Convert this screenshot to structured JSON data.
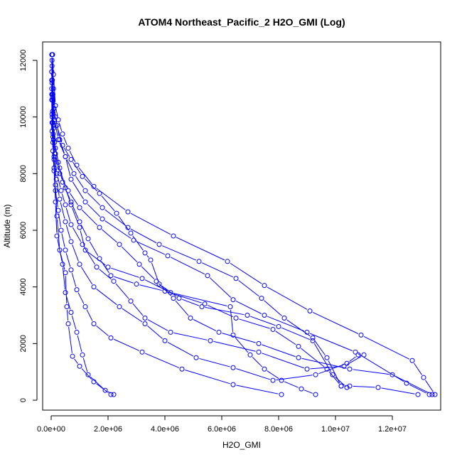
{
  "chart_data": {
    "type": "scatter",
    "title": "ATOM4 Northeast_Pacific_2 H2O_GMI (Log)",
    "xlabel": "H2O_GMI",
    "ylabel": "Altitude (m)",
    "xlim": [
      -300000,
      13700000
    ],
    "ylim": [
      -350,
      12650
    ],
    "xticks": [
      0,
      2000000,
      4000000,
      6000000,
      8000000,
      10000000,
      12000000
    ],
    "xtick_labels": [
      "0.0e+00",
      "2.0e+06",
      "4.0e+06",
      "6.0e+06",
      "8.0e+06",
      "1.0e+07",
      "1.2e+07"
    ],
    "yticks": [
      0,
      2000,
      4000,
      6000,
      8000,
      10000,
      12000
    ],
    "ytick_labels": [
      "0",
      "2000",
      "4000",
      "6000",
      "8000",
      "10000",
      "12000"
    ],
    "grid": false,
    "color": "#0000ff",
    "marker": "open-circle",
    "series": [
      {
        "points": [
          [
            2200000,
            200
          ],
          [
            1900000,
            350
          ],
          [
            1300000,
            900
          ],
          [
            1100000,
            1600
          ],
          [
            900000,
            2400
          ],
          [
            700000,
            3100
          ],
          [
            500000,
            3800
          ],
          [
            400000,
            4800
          ],
          [
            200000,
            5800
          ],
          [
            150000,
            7000
          ],
          [
            100000,
            8200
          ],
          [
            80000,
            9200
          ],
          [
            50000,
            10200
          ],
          [
            30000,
            11200
          ],
          [
            20000,
            12200
          ]
        ]
      },
      {
        "points": [
          [
            2100000,
            200
          ],
          [
            1500000,
            650
          ],
          [
            1000000,
            1200
          ],
          [
            750000,
            1550
          ],
          [
            600000,
            2700
          ],
          [
            550000,
            3300
          ],
          [
            500000,
            4500
          ],
          [
            300000,
            5300
          ],
          [
            200000,
            6500
          ],
          [
            150000,
            7600
          ],
          [
            100000,
            8600
          ],
          [
            80000,
            9600
          ],
          [
            60000,
            10800
          ],
          [
            30000,
            12000
          ]
        ]
      },
      {
        "points": [
          [
            13300000,
            200
          ],
          [
            12500000,
            600
          ],
          [
            10700000,
            1700
          ],
          [
            9000000,
            2400
          ],
          [
            7500000,
            3000
          ],
          [
            6400000,
            3550
          ],
          [
            5500000,
            4400
          ],
          [
            4100000,
            5100
          ],
          [
            2900000,
            5650
          ],
          [
            1800000,
            6400
          ],
          [
            1200000,
            7000
          ],
          [
            700000,
            7800
          ],
          [
            500000,
            8600
          ],
          [
            300000,
            9200
          ],
          [
            150000,
            10000
          ],
          [
            80000,
            11000
          ],
          [
            50000,
            12200
          ]
        ]
      },
      {
        "points": [
          [
            13500000,
            200
          ],
          [
            13100000,
            800
          ],
          [
            12700000,
            1400
          ],
          [
            10900000,
            2300
          ],
          [
            9100000,
            3150
          ],
          [
            7500000,
            4050
          ],
          [
            6200000,
            4900
          ],
          [
            4300000,
            5800
          ],
          [
            2700000,
            6650
          ],
          [
            1500000,
            7550
          ],
          [
            900000,
            8300
          ],
          [
            600000,
            8900
          ],
          [
            400000,
            9400
          ],
          [
            250000,
            9900
          ],
          [
            150000,
            10400
          ],
          [
            80000,
            11500
          ],
          [
            40000,
            12200
          ]
        ]
      },
      {
        "points": [
          [
            9300000,
            200
          ],
          [
            8800000,
            400
          ],
          [
            8100000,
            700
          ],
          [
            7500000,
            1100
          ],
          [
            7000000,
            1600
          ],
          [
            6400000,
            2300
          ],
          [
            6300000,
            3300
          ],
          [
            4200000,
            3800
          ],
          [
            3200000,
            4300
          ],
          [
            2000000,
            4700
          ],
          [
            1200000,
            5300
          ],
          [
            1000000,
            6100
          ],
          [
            700000,
            6900
          ],
          [
            500000,
            7500
          ],
          [
            300000,
            8200
          ],
          [
            150000,
            8900
          ],
          [
            80000,
            9700
          ],
          [
            50000,
            10600
          ],
          [
            30000,
            11800
          ]
        ]
      },
      {
        "points": [
          [
            12900000,
            200
          ],
          [
            11500000,
            450
          ],
          [
            10500000,
            500
          ],
          [
            10200000,
            500
          ],
          [
            9700000,
            1100
          ],
          [
            8700000,
            1900
          ],
          [
            7800000,
            2500
          ],
          [
            6500000,
            2900
          ],
          [
            5400000,
            3400
          ],
          [
            4000000,
            3850
          ],
          [
            3000000,
            4100
          ],
          [
            2100000,
            4400
          ],
          [
            1700000,
            5000
          ],
          [
            1300000,
            5700
          ],
          [
            1000000,
            6300
          ],
          [
            700000,
            7000
          ],
          [
            400000,
            7700
          ],
          [
            250000,
            8400
          ],
          [
            120000,
            9100
          ],
          [
            60000,
            9800
          ],
          [
            30000,
            10800
          ],
          [
            20000,
            11600
          ]
        ]
      },
      {
        "points": [
          [
            11000000,
            1600
          ],
          [
            10300000,
            1200
          ],
          [
            9000000,
            1100
          ],
          [
            7300000,
            1700
          ],
          [
            5600000,
            2100
          ],
          [
            4200000,
            2400
          ],
          [
            3300000,
            2900
          ],
          [
            2800000,
            3500
          ],
          [
            2200000,
            4200
          ],
          [
            1600000,
            4700
          ],
          [
            1100000,
            5500
          ],
          [
            700000,
            6200
          ],
          [
            500000,
            6900
          ],
          [
            350000,
            7400
          ],
          [
            200000,
            8000
          ],
          [
            120000,
            8700
          ],
          [
            60000,
            9300
          ],
          [
            40000,
            10000
          ],
          [
            20000,
            11000
          ]
        ]
      },
      {
        "points": [
          [
            10800000,
            1600
          ],
          [
            10400000,
            1300
          ],
          [
            9300000,
            900
          ],
          [
            7800000,
            700
          ],
          [
            6400000,
            1150
          ],
          [
            5100000,
            1500
          ],
          [
            4000000,
            2100
          ],
          [
            3300000,
            2700
          ],
          [
            2400000,
            3300
          ],
          [
            1500000,
            4000
          ],
          [
            1000000,
            4800
          ],
          [
            700000,
            5600
          ],
          [
            500000,
            6300
          ],
          [
            300000,
            7100
          ],
          [
            180000,
            7800
          ],
          [
            100000,
            8500
          ],
          [
            60000,
            9100
          ],
          [
            30000,
            9800
          ],
          [
            20000,
            10800
          ]
        ]
      },
      {
        "points": [
          [
            10400000,
            450
          ],
          [
            9900000,
            900
          ],
          [
            9200000,
            2100
          ],
          [
            8000000,
            2600
          ],
          [
            6900000,
            3000
          ],
          [
            5300000,
            3300
          ],
          [
            4500000,
            3600
          ],
          [
            3800000,
            4100
          ],
          [
            3500000,
            4950
          ],
          [
            3300000,
            5200
          ],
          [
            2800000,
            5900
          ],
          [
            2300000,
            6600
          ],
          [
            1700000,
            7300
          ],
          [
            1100000,
            7900
          ],
          [
            700000,
            8500
          ],
          [
            400000,
            9000
          ],
          [
            200000,
            9700
          ],
          [
            100000,
            10300
          ],
          [
            40000,
            11300
          ]
        ]
      },
      {
        "points": [
          [
            8100000,
            200
          ],
          [
            6400000,
            550
          ],
          [
            4600000,
            1100
          ],
          [
            3200000,
            1700
          ],
          [
            2100000,
            2200
          ],
          [
            1500000,
            2700
          ],
          [
            1200000,
            3300
          ],
          [
            900000,
            3900
          ],
          [
            700000,
            4600
          ],
          [
            500000,
            5300
          ],
          [
            350000,
            6000
          ],
          [
            250000,
            6700
          ],
          [
            150000,
            7400
          ],
          [
            100000,
            8100
          ],
          [
            60000,
            8800
          ],
          [
            30000,
            9500
          ],
          [
            20000,
            10600
          ]
        ]
      },
      {
        "points": [
          [
            10200000,
            500
          ],
          [
            9700000,
            1500
          ],
          [
            9200000,
            2200
          ],
          [
            8200000,
            2900
          ],
          [
            7400000,
            3600
          ],
          [
            6500000,
            4300
          ],
          [
            5200000,
            4900
          ],
          [
            3800000,
            5500
          ],
          [
            2700000,
            6100
          ],
          [
            1800000,
            6800
          ],
          [
            1200000,
            7400
          ],
          [
            800000,
            8000
          ],
          [
            500000,
            8600
          ],
          [
            250000,
            9200
          ],
          [
            120000,
            9900
          ],
          [
            50000,
            10700
          ],
          [
            20000,
            11600
          ]
        ]
      },
      {
        "points": [
          [
            13400000,
            200
          ],
          [
            12000000,
            900
          ],
          [
            10500000,
            1100
          ],
          [
            8700000,
            1500
          ],
          [
            7300000,
            2000
          ],
          [
            5900000,
            2400
          ],
          [
            4900000,
            2900
          ],
          [
            4300000,
            3600
          ],
          [
            3700000,
            4200
          ],
          [
            3100000,
            4800
          ],
          [
            2400000,
            5500
          ],
          [
            1700000,
            6100
          ],
          [
            1000000,
            6800
          ],
          [
            600000,
            7400
          ],
          [
            300000,
            8000
          ],
          [
            150000,
            8700
          ],
          [
            70000,
            9400
          ],
          [
            30000,
            10100
          ],
          [
            20000,
            11300
          ]
        ]
      }
    ]
  }
}
